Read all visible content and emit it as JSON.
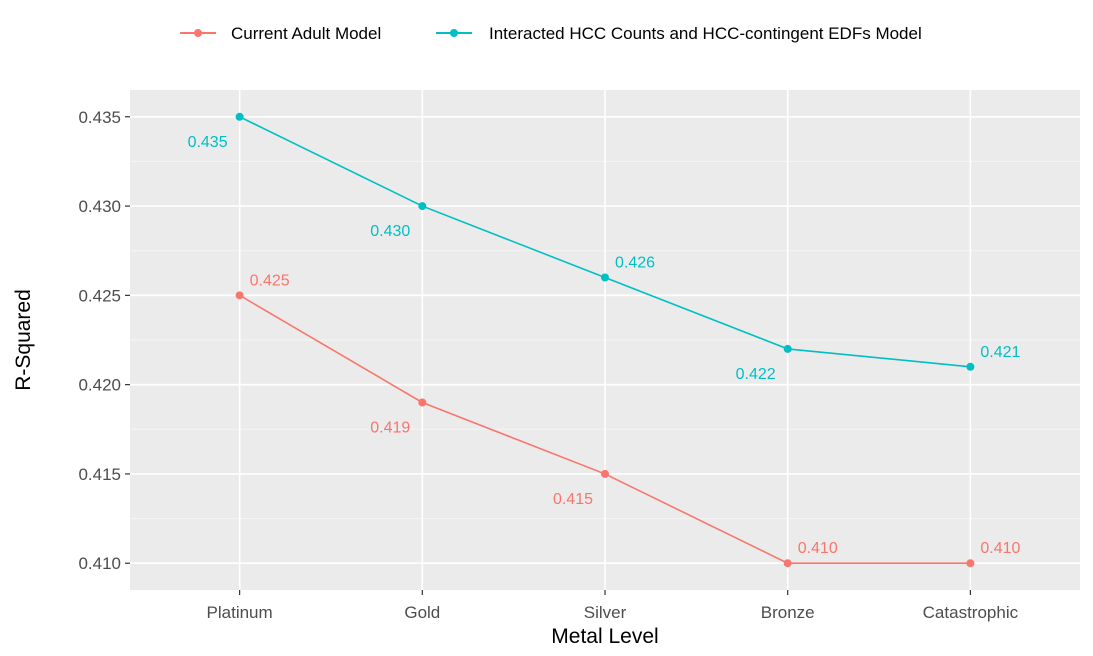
{
  "chart_data": {
    "type": "line",
    "title": "",
    "xlabel": "Metal Level",
    "ylabel": "R-Squared",
    "categories": [
      "Platinum",
      "Gold",
      "Silver",
      "Bronze",
      "Catastrophic"
    ],
    "ylim": [
      0.4085,
      0.4365
    ],
    "yticks": [
      0.41,
      0.415,
      0.42,
      0.425,
      0.43,
      0.435
    ],
    "ytick_labels": [
      "0.410",
      "0.415",
      "0.420",
      "0.425",
      "0.430",
      "0.435"
    ],
    "grid": true,
    "legend_position": "top",
    "series": [
      {
        "name": "Current Adult Model",
        "color": "#F8766D",
        "values": [
          0.425,
          0.419,
          0.415,
          0.41,
          0.41
        ],
        "labels": [
          "0.425",
          "0.419",
          "0.415",
          "0.410",
          "0.410"
        ],
        "label_side": [
          "above-right",
          "below-left",
          "below-left",
          "above-right",
          "above-right"
        ]
      },
      {
        "name": "Interacted HCC Counts and HCC-contingent EDFs Model",
        "color": "#00BFC4",
        "values": [
          0.435,
          0.43,
          0.426,
          0.422,
          0.421
        ],
        "labels": [
          "0.435",
          "0.430",
          "0.426",
          "0.422",
          "0.421"
        ],
        "label_side": [
          "below-left",
          "below-left",
          "above-right",
          "below-left",
          "above-right"
        ]
      }
    ]
  }
}
